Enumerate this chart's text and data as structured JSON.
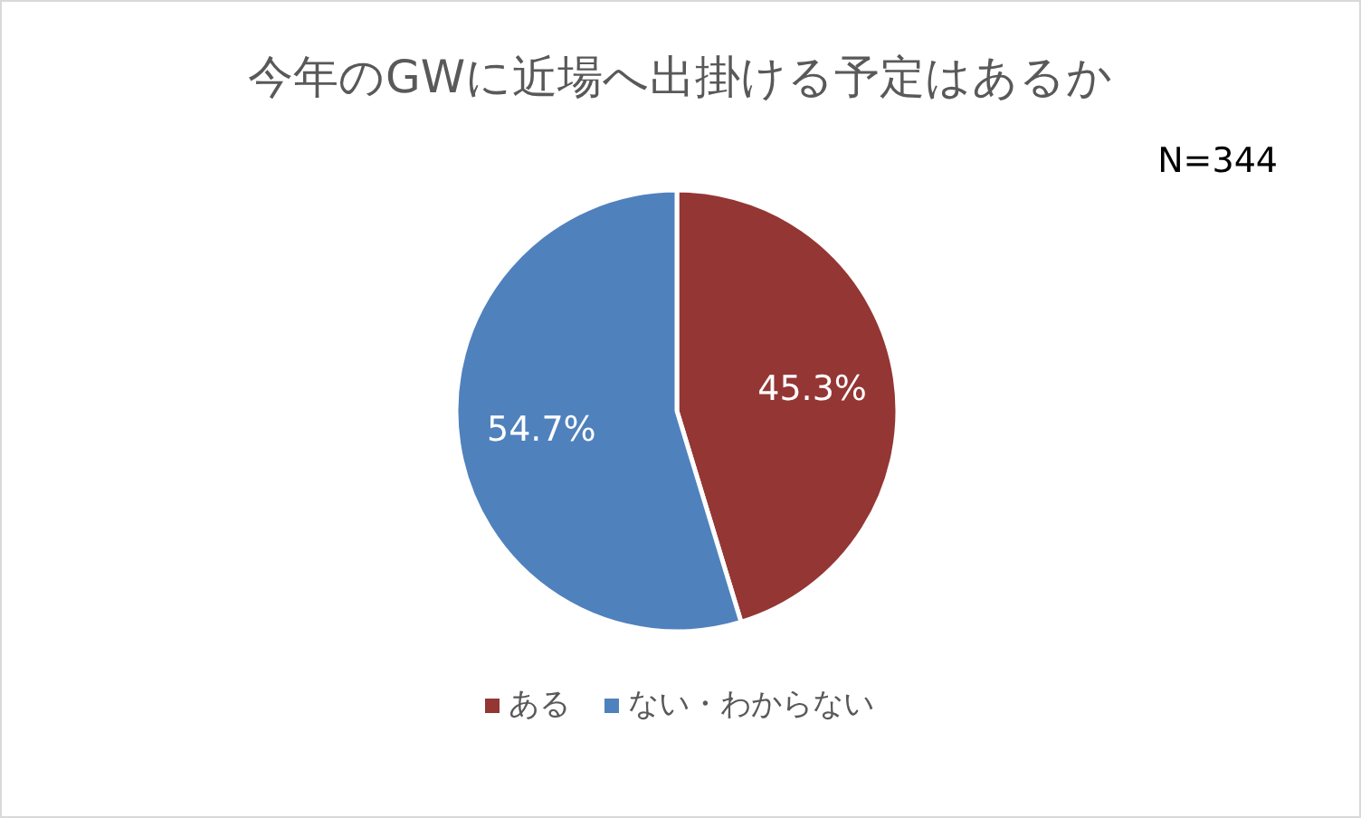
{
  "chart_data": {
    "type": "pie",
    "title": "今年のGWに近場へ出掛ける予定はあるか",
    "categories": [
      "ある",
      "ない・わからない"
    ],
    "values": [
      45.3,
      54.7
    ],
    "colors": [
      "#943634",
      "#4f81bd"
    ],
    "value_labels": [
      "45.3%",
      "54.7%"
    ],
    "legend": "bottom",
    "annotations": [
      "N=344"
    ]
  }
}
